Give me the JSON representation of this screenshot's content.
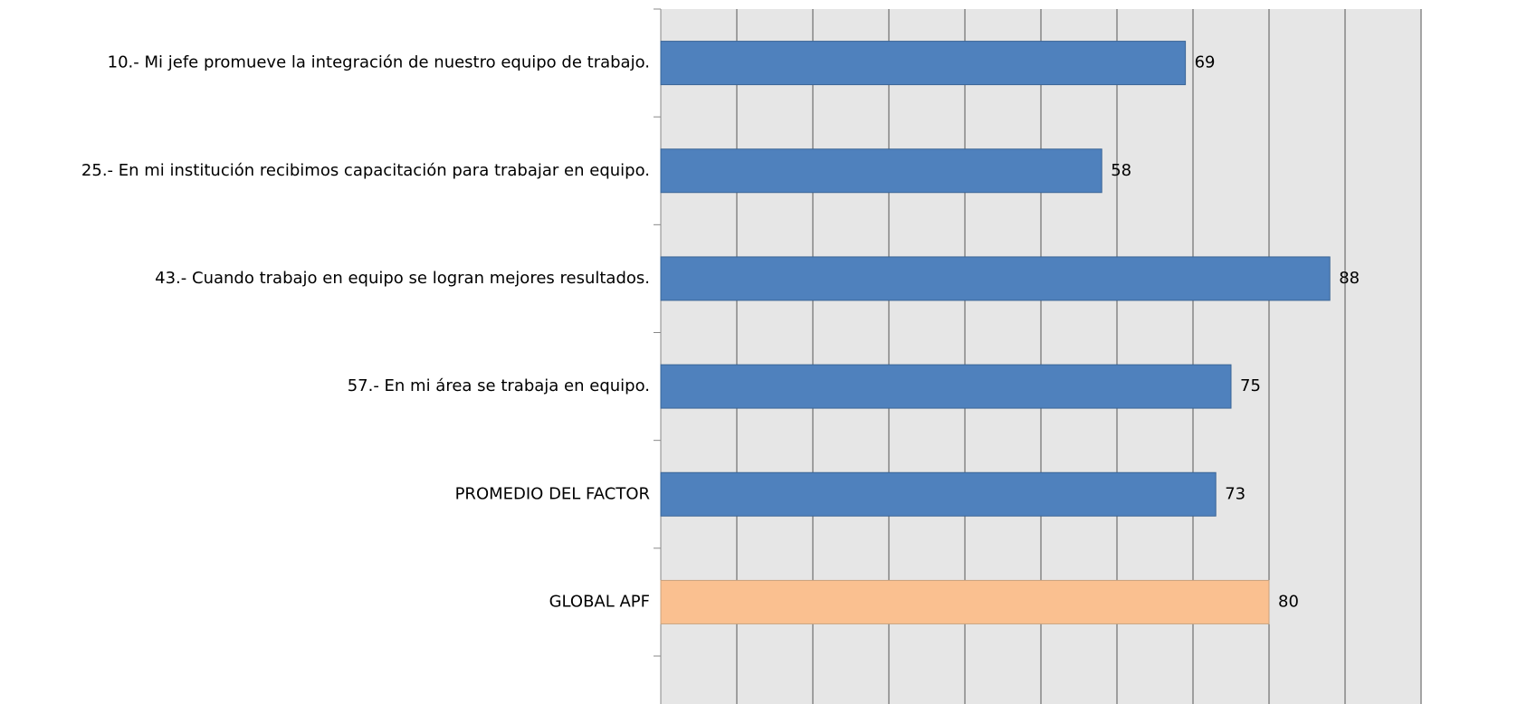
{
  "chart_data": {
    "type": "barh",
    "categories": [
      "10.- Mi jefe promueve la integración de nuestro equipo de trabajo.",
      "25.- En mi institución recibimos capacitación para trabajar en equipo.",
      "43.- Cuando trabajo en equipo se logran mejores resultados.",
      "57.- En mi área se trabaja en equipo.",
      "PROMEDIO DEL FACTOR",
      "GLOBAL APF"
    ],
    "values": [
      69,
      58,
      88,
      75,
      73,
      80
    ],
    "colors": [
      "#4f81bd",
      "#4f81bd",
      "#4f81bd",
      "#4f81bd",
      "#4f81bd",
      "#fac090"
    ],
    "xlim": [
      0,
      100
    ],
    "xticks": [
      0,
      10,
      20,
      30,
      40,
      50,
      60,
      70,
      80,
      90,
      100
    ],
    "grid": true
  }
}
